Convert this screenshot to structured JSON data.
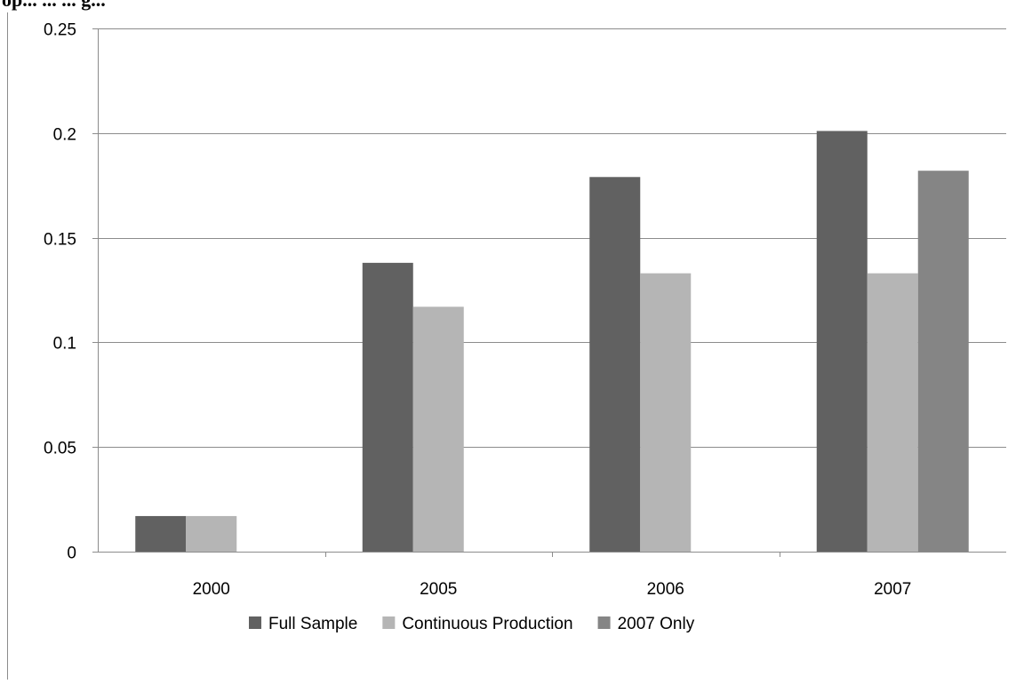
{
  "header_fragment": "op... ... ... g...",
  "chart_data": {
    "type": "bar",
    "title": "",
    "xlabel": "",
    "ylabel": "",
    "categories": [
      "2000",
      "2005",
      "2006",
      "2007"
    ],
    "series": [
      {
        "name": "Full Sample",
        "values": [
          0.017,
          0.138,
          0.179,
          0.201
        ],
        "color": "#616161"
      },
      {
        "name": "Continuous Production",
        "values": [
          0.017,
          0.117,
          0.133,
          0.133
        ],
        "color": "#b5b5b5"
      },
      {
        "name": "2007 Only",
        "values": [
          null,
          null,
          null,
          0.182
        ],
        "color": "#858585"
      }
    ],
    "ylim": [
      0,
      0.25
    ],
    "yticks": [
      "0",
      "0.05",
      "0.1",
      "0.15",
      "0.2",
      "0.25"
    ],
    "grid": true,
    "legend_position": "bottom"
  }
}
